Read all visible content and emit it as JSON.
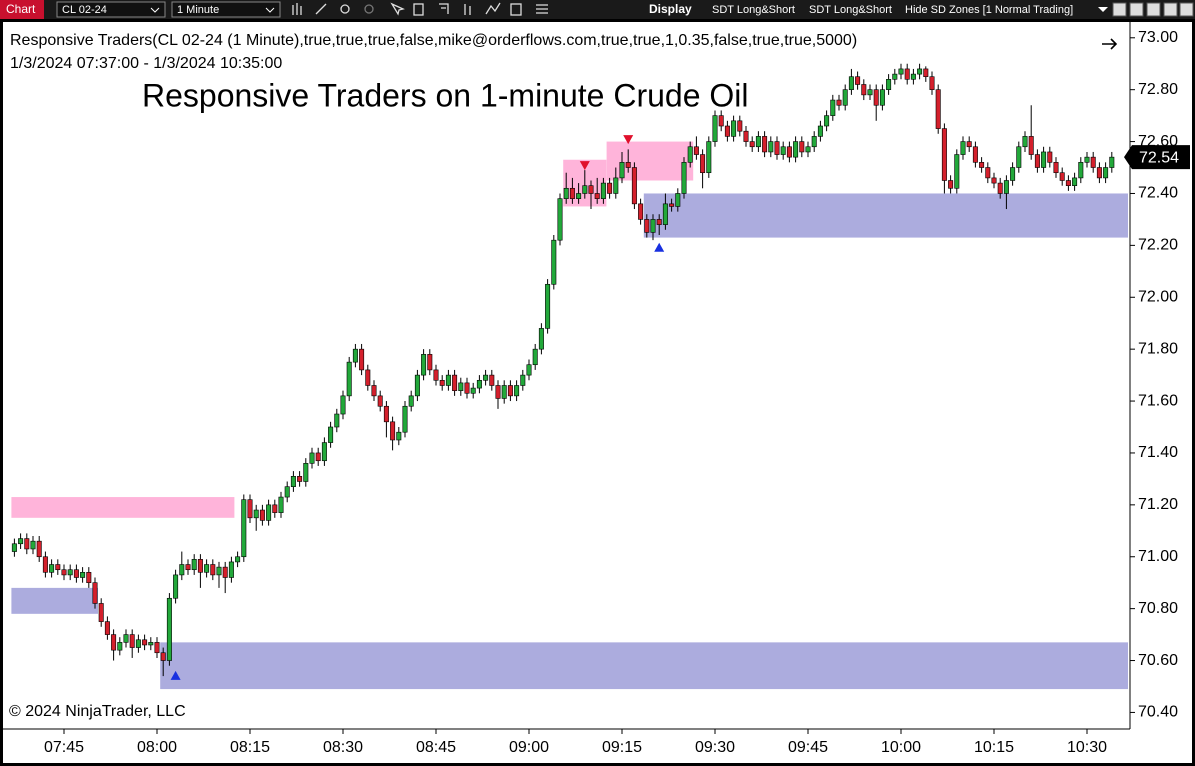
{
  "toolbar": {
    "window": "Chart",
    "instrument": "CL 02-24",
    "interval": "1 Minute",
    "display": "Display",
    "button_1": "SDT Long&Short",
    "button_2": "SDT Long&Short",
    "button_3": "Hide SD Zones [1 Normal Trading]"
  },
  "chart_data": {
    "type": "candlestick",
    "indicator": "Responsive Traders(CL 02-24 (1 Minute),true,true,true,false,mike@orderflows.com,true,true,1,0.35,false,true,true,5000)",
    "date_range": "1/3/2024 07:37:00 - 1/3/2024 10:35:00",
    "title": "Responsive Traders on 1-minute Crude Oil",
    "copyright": "© 2024 NinjaTrader, LLC",
    "up_color": "#22a83a",
    "down_color": "#d4202c",
    "categories": [
      null,
      null,
      null,
      null,
      null,
      null,
      null,
      null,
      "07:45",
      null,
      null,
      null,
      null,
      null,
      null,
      null,
      null,
      null,
      null,
      null,
      null,
      null,
      null,
      "08:00",
      null,
      null,
      null,
      null,
      null,
      null,
      null,
      null,
      null,
      null,
      null,
      null,
      null,
      null,
      "08:15",
      null,
      null,
      null,
      null,
      null,
      null,
      null,
      null,
      null,
      null,
      null,
      null,
      null,
      null,
      "08:30",
      null,
      null,
      null,
      null,
      null,
      null,
      null,
      null,
      null,
      null,
      null,
      null,
      null,
      null,
      "08:45",
      null,
      null,
      null,
      null,
      null,
      null,
      null,
      null,
      null,
      null,
      null,
      null,
      null,
      null,
      "09:00",
      null,
      null,
      null,
      null,
      null,
      null,
      null,
      null,
      null,
      null,
      null,
      null,
      null,
      null,
      "09:15",
      null,
      null,
      null,
      null,
      null,
      null,
      null,
      null,
      null,
      null,
      null,
      null,
      null,
      null,
      "09:30",
      null,
      null,
      null,
      null,
      null,
      null,
      null,
      null,
      null,
      null,
      null,
      null,
      null,
      null,
      "09:45",
      null,
      null,
      null,
      null,
      null,
      null,
      null,
      null,
      null,
      null,
      null,
      null,
      null,
      null,
      "10:00",
      null,
      null,
      null,
      null,
      null,
      null,
      null,
      null,
      null,
      null,
      null,
      null,
      null,
      null,
      "10:15",
      null,
      null,
      null,
      null,
      null,
      null,
      null,
      null,
      null,
      null,
      null,
      null,
      null,
      null,
      "10:30",
      null,
      null,
      null,
      null
    ],
    "ohlc": [
      [
        71.02,
        71.07,
        71.0,
        71.05
      ],
      [
        71.05,
        71.09,
        71.03,
        71.07
      ],
      [
        71.07,
        71.09,
        71.01,
        71.03
      ],
      [
        71.03,
        71.08,
        71.01,
        71.06
      ],
      [
        71.06,
        71.08,
        70.98,
        71.0
      ],
      [
        71.0,
        71.02,
        70.92,
        70.94
      ],
      [
        70.94,
        70.99,
        70.92,
        70.97
      ],
      [
        70.97,
        70.99,
        70.93,
        70.95
      ],
      [
        70.95,
        70.97,
        70.91,
        70.93
      ],
      [
        70.93,
        70.97,
        70.91,
        70.95
      ],
      [
        70.95,
        70.97,
        70.9,
        70.92
      ],
      [
        70.92,
        70.96,
        70.9,
        70.94
      ],
      [
        70.94,
        70.96,
        70.88,
        70.9
      ],
      [
        70.9,
        70.92,
        70.8,
        70.82
      ],
      [
        70.82,
        70.84,
        70.73,
        70.75
      ],
      [
        70.75,
        70.77,
        70.68,
        70.7
      ],
      [
        70.7,
        70.72,
        70.6,
        70.64
      ],
      [
        70.64,
        70.69,
        70.62,
        70.67
      ],
      [
        70.67,
        70.72,
        70.65,
        70.7
      ],
      [
        70.7,
        70.72,
        70.61,
        70.65
      ],
      [
        70.65,
        70.7,
        70.63,
        70.68
      ],
      [
        70.68,
        70.7,
        70.64,
        70.66
      ],
      [
        70.66,
        70.69,
        70.64,
        70.67
      ],
      [
        70.67,
        70.69,
        70.61,
        70.63
      ],
      [
        70.63,
        70.65,
        70.54,
        70.6
      ],
      [
        70.6,
        70.86,
        70.58,
        70.84
      ],
      [
        70.84,
        70.95,
        70.82,
        70.93
      ],
      [
        70.93,
        71.02,
        70.91,
        70.97
      ],
      [
        70.97,
        70.99,
        70.93,
        70.95
      ],
      [
        70.95,
        71.01,
        70.93,
        70.99
      ],
      [
        70.99,
        71.01,
        70.88,
        70.94
      ],
      [
        70.94,
        70.99,
        70.92,
        70.97
      ],
      [
        70.97,
        70.99,
        70.91,
        70.93
      ],
      [
        70.93,
        70.98,
        70.88,
        70.96
      ],
      [
        70.96,
        70.98,
        70.86,
        70.92
      ],
      [
        70.92,
        71.0,
        70.9,
        70.98
      ],
      [
        70.98,
        71.02,
        70.96,
        71.0
      ],
      [
        71.0,
        71.24,
        70.98,
        71.22
      ],
      [
        71.22,
        71.24,
        71.13,
        71.15
      ],
      [
        71.15,
        71.2,
        71.1,
        71.18
      ],
      [
        71.18,
        71.2,
        71.12,
        71.14
      ],
      [
        71.14,
        71.22,
        71.12,
        71.2
      ],
      [
        71.2,
        71.22,
        71.15,
        71.17
      ],
      [
        71.17,
        71.25,
        71.15,
        71.23
      ],
      [
        71.23,
        71.29,
        71.21,
        71.27
      ],
      [
        71.27,
        71.33,
        71.25,
        71.31
      ],
      [
        71.31,
        71.33,
        71.27,
        71.29
      ],
      [
        71.29,
        71.38,
        71.27,
        71.36
      ],
      [
        71.36,
        71.42,
        71.34,
        71.4
      ],
      [
        71.4,
        71.42,
        71.35,
        71.37
      ],
      [
        71.37,
        71.46,
        71.35,
        71.44
      ],
      [
        71.44,
        71.52,
        71.42,
        71.5
      ],
      [
        71.5,
        71.57,
        71.48,
        71.55
      ],
      [
        71.55,
        71.64,
        71.53,
        71.62
      ],
      [
        71.62,
        71.77,
        71.6,
        71.75
      ],
      [
        71.75,
        71.82,
        71.73,
        71.8
      ],
      [
        71.8,
        71.82,
        71.7,
        71.72
      ],
      [
        71.72,
        71.74,
        71.64,
        71.66
      ],
      [
        71.66,
        71.68,
        71.6,
        71.62
      ],
      [
        71.62,
        71.64,
        71.56,
        71.58
      ],
      [
        71.58,
        71.6,
        71.46,
        71.52
      ],
      [
        71.52,
        71.54,
        71.41,
        71.45
      ],
      [
        71.45,
        71.5,
        71.43,
        71.48
      ],
      [
        71.48,
        71.6,
        71.46,
        71.58
      ],
      [
        71.58,
        71.64,
        71.56,
        71.62
      ],
      [
        71.62,
        71.72,
        71.6,
        71.7
      ],
      [
        71.7,
        71.8,
        71.68,
        71.78
      ],
      [
        71.78,
        71.8,
        71.7,
        71.72
      ],
      [
        71.72,
        71.74,
        71.66,
        71.68
      ],
      [
        71.68,
        71.7,
        71.64,
        71.66
      ],
      [
        71.66,
        71.72,
        71.64,
        71.7
      ],
      [
        71.7,
        71.72,
        71.62,
        71.64
      ],
      [
        71.64,
        71.69,
        71.62,
        71.67
      ],
      [
        71.67,
        71.69,
        71.61,
        71.63
      ],
      [
        71.63,
        71.67,
        71.61,
        71.65
      ],
      [
        71.65,
        71.7,
        71.63,
        71.68
      ],
      [
        71.68,
        71.72,
        71.66,
        71.7
      ],
      [
        71.7,
        71.72,
        71.64,
        71.66
      ],
      [
        71.66,
        71.68,
        71.57,
        71.61
      ],
      [
        71.61,
        71.68,
        71.59,
        71.66
      ],
      [
        71.66,
        71.68,
        71.6,
        71.62
      ],
      [
        71.62,
        71.68,
        71.6,
        71.66
      ],
      [
        71.66,
        71.72,
        71.64,
        71.7
      ],
      [
        71.7,
        71.76,
        71.68,
        71.74
      ],
      [
        71.74,
        71.82,
        71.72,
        71.8
      ],
      [
        71.8,
        71.9,
        71.78,
        71.88
      ],
      [
        71.88,
        72.07,
        71.86,
        72.05
      ],
      [
        72.05,
        72.24,
        72.03,
        72.22
      ],
      [
        72.22,
        72.4,
        72.2,
        72.38
      ],
      [
        72.38,
        72.48,
        72.36,
        72.42
      ],
      [
        72.42,
        72.46,
        72.36,
        72.38
      ],
      [
        72.38,
        72.44,
        72.36,
        72.4
      ],
      [
        72.4,
        72.49,
        72.38,
        72.43
      ],
      [
        72.43,
        72.45,
        72.34,
        72.4
      ],
      [
        72.4,
        72.46,
        72.36,
        72.38
      ],
      [
        72.38,
        72.46,
        72.36,
        72.44
      ],
      [
        72.44,
        72.46,
        72.38,
        72.4
      ],
      [
        72.4,
        72.5,
        72.38,
        72.46
      ],
      [
        72.46,
        72.56,
        72.44,
        72.52
      ],
      [
        72.52,
        72.57,
        72.48,
        72.5
      ],
      [
        72.5,
        72.52,
        72.34,
        72.36
      ],
      [
        72.36,
        72.38,
        72.28,
        72.3
      ],
      [
        72.3,
        72.32,
        72.23,
        72.25
      ],
      [
        72.25,
        72.32,
        72.22,
        72.3
      ],
      [
        72.3,
        72.32,
        72.24,
        72.28
      ],
      [
        72.28,
        72.4,
        72.26,
        72.36
      ],
      [
        72.36,
        72.38,
        72.33,
        72.35
      ],
      [
        72.35,
        72.42,
        72.33,
        72.4
      ],
      [
        72.4,
        72.54,
        72.38,
        72.52
      ],
      [
        72.52,
        72.6,
        72.5,
        72.58
      ],
      [
        72.58,
        72.62,
        72.53,
        72.55
      ],
      [
        72.55,
        72.57,
        72.42,
        72.48
      ],
      [
        72.48,
        72.62,
        72.46,
        72.6
      ],
      [
        72.6,
        72.72,
        72.58,
        72.7
      ],
      [
        72.7,
        72.72,
        72.64,
        72.66
      ],
      [
        72.66,
        72.68,
        72.6,
        72.62
      ],
      [
        72.62,
        72.7,
        72.6,
        72.68
      ],
      [
        72.68,
        72.7,
        72.62,
        72.64
      ],
      [
        72.64,
        72.66,
        72.58,
        72.6
      ],
      [
        72.6,
        72.62,
        72.56,
        72.58
      ],
      [
        72.58,
        72.64,
        72.56,
        72.62
      ],
      [
        72.62,
        72.64,
        72.54,
        72.56
      ],
      [
        72.56,
        72.62,
        72.54,
        72.6
      ],
      [
        72.6,
        72.62,
        72.53,
        72.55
      ],
      [
        72.55,
        72.6,
        72.53,
        72.58
      ],
      [
        72.58,
        72.6,
        72.52,
        72.54
      ],
      [
        72.54,
        72.62,
        72.52,
        72.6
      ],
      [
        72.6,
        72.62,
        72.54,
        72.56
      ],
      [
        72.56,
        72.6,
        72.54,
        72.58
      ],
      [
        72.58,
        72.64,
        72.56,
        72.62
      ],
      [
        72.62,
        72.68,
        72.6,
        72.66
      ],
      [
        72.66,
        72.72,
        72.64,
        72.7
      ],
      [
        72.7,
        72.78,
        72.68,
        72.76
      ],
      [
        72.76,
        72.78,
        72.72,
        72.74
      ],
      [
        72.74,
        72.82,
        72.72,
        72.8
      ],
      [
        72.8,
        72.88,
        72.78,
        72.85
      ],
      [
        72.85,
        72.87,
        72.8,
        72.82
      ],
      [
        72.82,
        72.84,
        72.76,
        72.78
      ],
      [
        72.78,
        72.82,
        72.76,
        72.8
      ],
      [
        72.8,
        72.82,
        72.68,
        72.74
      ],
      [
        72.74,
        72.82,
        72.72,
        72.8
      ],
      [
        72.8,
        72.86,
        72.78,
        72.84
      ],
      [
        72.84,
        72.88,
        72.82,
        72.86
      ],
      [
        72.86,
        72.9,
        72.84,
        72.88
      ],
      [
        72.88,
        72.9,
        72.82,
        72.84
      ],
      [
        72.84,
        72.88,
        72.82,
        72.86
      ],
      [
        72.86,
        72.9,
        72.84,
        72.88
      ],
      [
        72.88,
        72.89,
        72.83,
        72.85
      ],
      [
        72.85,
        72.87,
        72.78,
        72.8
      ],
      [
        72.8,
        72.82,
        72.63,
        72.65
      ],
      [
        72.65,
        72.67,
        72.4,
        72.45
      ],
      [
        72.45,
        72.47,
        72.4,
        72.42
      ],
      [
        72.42,
        72.57,
        72.4,
        72.55
      ],
      [
        72.55,
        72.62,
        72.53,
        72.6
      ],
      [
        72.6,
        72.62,
        72.56,
        72.58
      ],
      [
        72.58,
        72.6,
        72.5,
        72.52
      ],
      [
        72.52,
        72.54,
        72.48,
        72.5
      ],
      [
        72.5,
        72.52,
        72.44,
        72.46
      ],
      [
        72.46,
        72.48,
        72.42,
        72.44
      ],
      [
        72.44,
        72.46,
        72.38,
        72.4
      ],
      [
        72.4,
        72.47,
        72.34,
        72.45
      ],
      [
        72.45,
        72.52,
        72.43,
        72.5
      ],
      [
        72.5,
        72.6,
        72.48,
        72.58
      ],
      [
        72.58,
        72.64,
        72.56,
        72.62
      ],
      [
        72.62,
        72.74,
        72.53,
        72.55
      ],
      [
        72.55,
        72.57,
        72.48,
        72.5
      ],
      [
        72.5,
        72.58,
        72.48,
        72.56
      ],
      [
        72.56,
        72.58,
        72.5,
        72.52
      ],
      [
        72.52,
        72.54,
        72.46,
        72.48
      ],
      [
        72.48,
        72.5,
        72.43,
        72.45
      ],
      [
        72.45,
        72.47,
        72.41,
        72.43
      ],
      [
        72.43,
        72.48,
        72.41,
        72.46
      ],
      [
        72.46,
        72.54,
        72.44,
        72.52
      ],
      [
        72.52,
        72.56,
        72.5,
        72.54
      ],
      [
        72.54,
        72.56,
        72.48,
        72.5
      ],
      [
        72.5,
        72.52,
        72.44,
        72.46
      ],
      [
        72.46,
        72.52,
        72.44,
        72.5
      ],
      [
        72.5,
        72.56,
        72.48,
        72.54
      ]
    ],
    "zones": [
      {
        "color": "#ffb0d8",
        "low": 71.15,
        "high": 71.23,
        "x0": 0,
        "x1": 35
      },
      {
        "color": "#a8a8dc",
        "low": 70.78,
        "high": 70.88,
        "x0": 0,
        "x1": 13
      },
      {
        "color": "#a8a8dc",
        "low": 70.49,
        "high": 70.67,
        "x0": 24,
        "x1": 177
      },
      {
        "color": "#ffb0d8",
        "low": 72.35,
        "high": 72.53,
        "x0": 89,
        "x1": 95
      },
      {
        "color": "#ffb0d8",
        "low": 72.45,
        "high": 72.6,
        "x0": 96,
        "x1": 109
      },
      {
        "color": "#a8a8dc",
        "low": 72.23,
        "high": 72.4,
        "x0": 102,
        "x1": 177
      }
    ],
    "signals": [
      {
        "x": 92,
        "y": 72.49,
        "color": "#e0102c",
        "dir": "down"
      },
      {
        "x": 99,
        "y": 72.59,
        "color": "#e0102c",
        "dir": "down"
      },
      {
        "x": 26,
        "y": 70.56,
        "color": "#1830e0",
        "dir": "up"
      },
      {
        "x": 104,
        "y": 72.21,
        "color": "#1830e0",
        "dir": "up"
      }
    ],
    "ylim": [
      70.34,
      73.03
    ],
    "yticks": [
      {
        "value": 70.4,
        "label": "70.40"
      },
      {
        "value": 70.6,
        "label": "70.60"
      },
      {
        "value": 70.8,
        "label": "70.80"
      },
      {
        "value": 71,
        "label": "71.00"
      },
      {
        "value": 71.2,
        "label": "71.20"
      },
      {
        "value": 71.4,
        "label": "71.40"
      },
      {
        "value": 71.6,
        "label": "71.60"
      },
      {
        "value": 71.8,
        "label": "71.80"
      },
      {
        "value": 72,
        "label": "72.00"
      },
      {
        "value": 72.2,
        "label": "72.20"
      },
      {
        "value": 72.4,
        "label": "72.40"
      },
      {
        "value": 72.6,
        "label": "72.60"
      },
      {
        "value": 72.8,
        "label": "72.80"
      },
      {
        "value": 73,
        "label": "73.00"
      }
    ]
  }
}
